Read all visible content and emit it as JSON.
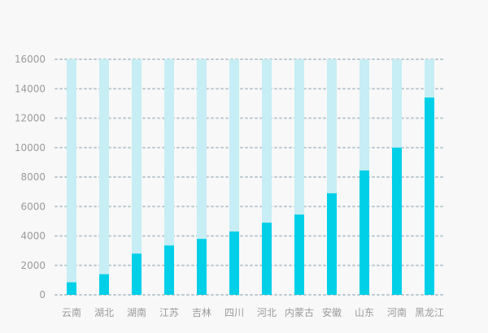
{
  "chart_data": {
    "type": "bar",
    "categories": [
      "云南",
      "湖北",
      "湖南",
      "江苏",
      "吉林",
      "四川",
      "河北",
      "内蒙古",
      "安徽",
      "山东",
      "河南",
      "黑龙江"
    ],
    "values": [
      850,
      1400,
      2800,
      3350,
      3800,
      4300,
      4900,
      5450,
      6900,
      8450,
      10000,
      13400
    ],
    "background_value": 16000,
    "ylim": [
      0,
      16000
    ],
    "yticks": [
      0,
      2000,
      4000,
      6000,
      8000,
      10000,
      12000,
      14000,
      16000
    ],
    "grid": true,
    "legend": "none",
    "colors": {
      "bar": "#00cfe8",
      "background_bar": "#c6eef4"
    },
    "title": "",
    "xlabel": "",
    "ylabel": ""
  }
}
